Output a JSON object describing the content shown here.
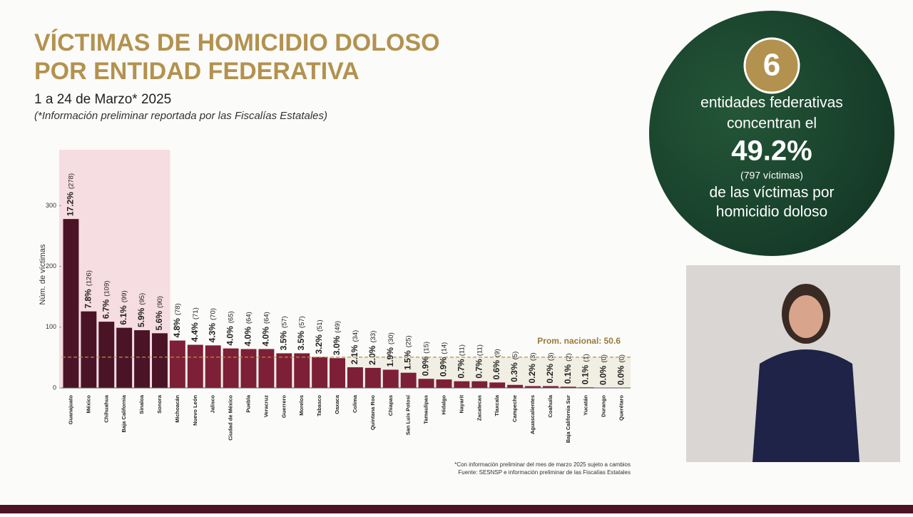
{
  "chart_data": {
    "type": "bar",
    "title": "VÍCTIMAS DE HOMICIDIO DOLOSO",
    "title_line2": "POR ENTIDAD FEDERATIVA",
    "subtitle": "1 a 24 de Marzo* 2025",
    "note": "(*Información preliminar reportada por las Fiscalías Estatales)",
    "y_label": "Núm. de víctimas",
    "categories": [
      "Guanajuato",
      "México",
      "Chihuahua",
      "Baja California",
      "Sinaloa",
      "Sonora",
      "Michoacán",
      "Nuevo León",
      "Jalisco",
      "Ciudad de México",
      "Puebla",
      "Veracruz",
      "Guerrero",
      "Morelos",
      "Tabasco",
      "Oaxaca",
      "Colima",
      "Quintana Roo",
      "Chiapas",
      "San Luis Potosí",
      "Tamaulipas",
      "Hidalgo",
      "Nayarit",
      "Zacatecas",
      "Tlaxcala",
      "Campeche",
      "Aguascalientes",
      "Coahuila",
      "Baja California Sur",
      "Yucatán",
      "Durango",
      "Querétaro"
    ],
    "values": [
      278,
      126,
      109,
      99,
      95,
      90,
      78,
      71,
      70,
      65,
      64,
      64,
      57,
      57,
      51,
      49,
      34,
      33,
      30,
      25,
      15,
      14,
      11,
      11,
      9,
      5,
      3,
      3,
      2,
      1,
      0,
      0
    ],
    "value_labels": [
      "(278)",
      "(126)",
      "(109)",
      "(99)",
      "(95)",
      "(90)",
      "(78)",
      "(71)",
      "(70)",
      "(65)",
      "(64)",
      "(64)",
      "(57)",
      "(57)",
      "(51)",
      "(49)",
      "(34)",
      "(33)",
      "(30)",
      "(25)",
      "(15)",
      "(14)",
      "(11)",
      "(11)",
      "(9)",
      "(5)",
      "(3)",
      "(3)",
      "(2)",
      "(1)",
      "(0)",
      "(0)"
    ],
    "percent_labels": [
      "17.2%",
      "7.8%",
      "6.7%",
      "6.1%",
      "5.9%",
      "5.6%",
      "4.8%",
      "4.4%",
      "4.3%",
      "4.0%",
      "4.0%",
      "4.0%",
      "3.5%",
      "3.5%",
      "3.2%",
      "3.0%",
      "2.1%",
      "2.0%",
      "1.9%",
      "1.5%",
      "0.9%",
      "0.9%",
      "0.7%",
      "0.7%",
      "0.6%",
      "0.3%",
      "0.2%",
      "0.2%",
      "0.1%",
      "0.1%",
      "0.0%",
      "0.0%"
    ],
    "colors": [
      "#4a1426",
      "#4a1426",
      "#4a1426",
      "#4a1426",
      "#4a1426",
      "#4a1426",
      "#7d1f36",
      "#7d1f36",
      "#7d1f36",
      "#7d1f36",
      "#7d1f36",
      "#7d1f36",
      "#7d1f36",
      "#7d1f36",
      "#7d1f36",
      "#7d1f36",
      "#7d1f36",
      "#7d1f36",
      "#7d1f36",
      "#7d1f36",
      "#7d1f36",
      "#7d1f36",
      "#7d1f36",
      "#7d1f36",
      "#7d1f36",
      "#7d1f36",
      "#7d1f36",
      "#7d1f36",
      "#7d1f36",
      "#7d1f36",
      "#7d1f36",
      "#7d1f36"
    ],
    "ylim": [
      0,
      392
    ],
    "yticks": [
      0,
      100,
      200,
      300
    ],
    "average": {
      "value": 50.6,
      "label": "Prom. nacional: 50.6"
    },
    "footnotes": [
      "*Con información preliminar del mes de marzo 2025 sujeto a cambios",
      "Fuente: SESNSP e información preliminar de las Fiscalías Estatales"
    ]
  },
  "panel": {
    "number": "6",
    "line1": "entidades federativas",
    "line2": "concentran el",
    "percent": "49.2%",
    "victims": "(797 víctimas)",
    "line3": "de las víctimas por",
    "line4": "homicidio doloso"
  }
}
